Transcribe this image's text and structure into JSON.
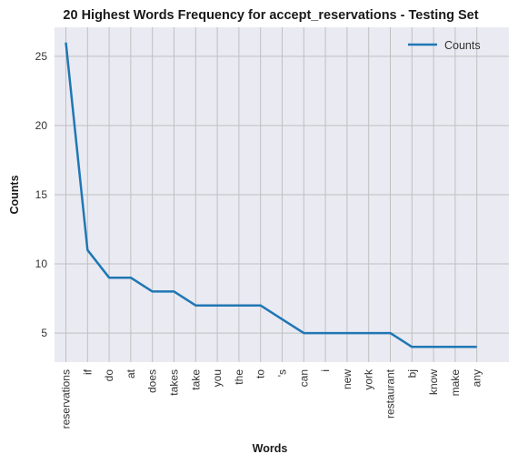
{
  "chart_data": {
    "type": "line",
    "title": "20 Highest Words Frequency for accept_reservations - Testing Set",
    "xlabel": "Words",
    "ylabel": "Counts",
    "categories": [
      "reservations",
      "if",
      "do",
      "at",
      "does",
      "takes",
      "take",
      "you",
      "the",
      "to",
      "'s",
      "can",
      "i",
      "new",
      "york",
      "restaurant",
      "bj",
      "know",
      "make",
      "any"
    ],
    "series": [
      {
        "name": "Counts",
        "values": [
          26,
          11,
          9,
          9,
          8,
          8,
          7,
          7,
          7,
          7,
          6,
          5,
          5,
          5,
          5,
          5,
          4,
          4,
          4,
          4
        ]
      }
    ],
    "ylim": [
      2.9,
      27.1
    ],
    "yticks": [
      5,
      10,
      15,
      20,
      25
    ],
    "grid": true,
    "legend_position": "top-right",
    "colors": {
      "line": "#1f77b4",
      "plot_background": "#eaeaf2",
      "grid": "#c0c0c0"
    }
  }
}
